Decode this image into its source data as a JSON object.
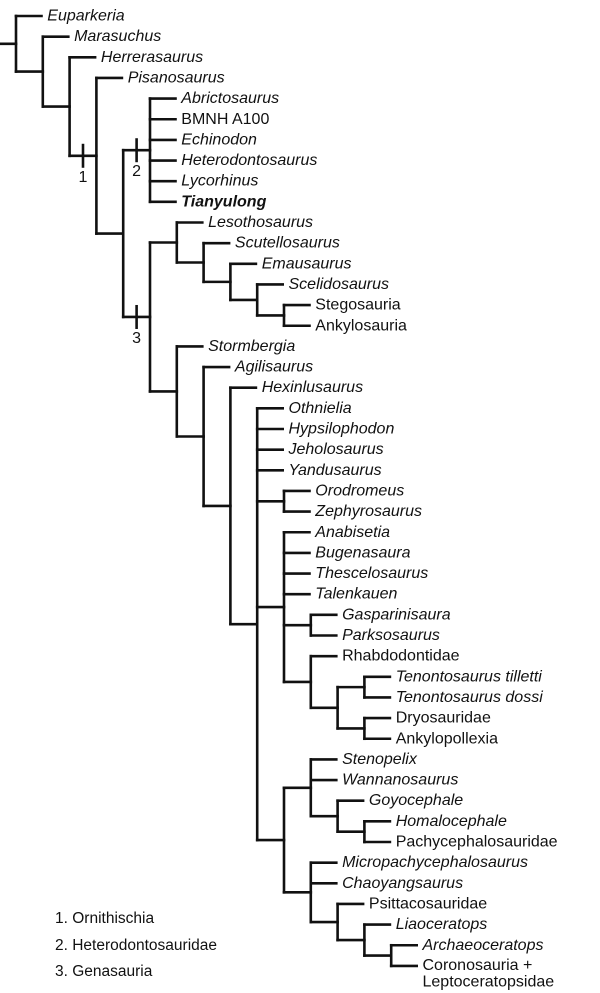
{
  "figure": {
    "description": "Phylogenetic cladogram of ornithischian dinosaurs and outgroups",
    "colors": {
      "line": "#111111",
      "text": "#111111",
      "background": "#ffffff"
    },
    "tick_labels": [
      "1",
      "2",
      "3"
    ],
    "legend": {
      "items": [
        "1. Ornithischia",
        "2. Heterodontosauridae",
        "3. Genasauria"
      ]
    },
    "tree": {
      "children": [
        {
          "label": "Euparkeria",
          "style": "italic"
        },
        {
          "children": [
            {
              "label": "Marasuchus",
              "style": "italic"
            },
            {
              "children": [
                {
                  "label": "Herrerasaurus",
                  "style": "italic"
                },
                {
                  "tick": "1",
                  "children": [
                    {
                      "label": "Pisanosaurus",
                      "style": "italic"
                    },
                    {
                      "children": [
                        {
                          "tick": "2",
                          "children": [
                            {
                              "label": "Abrictosaurus",
                              "style": "italic"
                            },
                            {
                              "label": "BMNH A100",
                              "style": "plain"
                            },
                            {
                              "label": "Echinodon",
                              "style": "italic"
                            },
                            {
                              "label": "Heterodontosaurus",
                              "style": "italic"
                            },
                            {
                              "label": "Lycorhinus",
                              "style": "italic"
                            },
                            {
                              "label": "Tianyulong",
                              "style": "bold-italic"
                            }
                          ]
                        },
                        {
                          "tick": "3",
                          "children": [
                            {
                              "children": [
                                {
                                  "label": "Lesothosaurus",
                                  "style": "italic"
                                },
                                {
                                  "children": [
                                    {
                                      "label": "Scutellosaurus",
                                      "style": "italic"
                                    },
                                    {
                                      "children": [
                                        {
                                          "label": "Emausaurus",
                                          "style": "italic"
                                        },
                                        {
                                          "children": [
                                            {
                                              "label": "Scelidosaurus",
                                              "style": "italic"
                                            },
                                            {
                                              "children": [
                                                {
                                                  "label": "Stegosauria",
                                                  "style": "plain"
                                                },
                                                {
                                                  "label": "Ankylosauria",
                                                  "style": "plain"
                                                }
                                              ]
                                            }
                                          ]
                                        }
                                      ]
                                    }
                                  ]
                                }
                              ]
                            },
                            {
                              "children": [
                                {
                                  "label": "Stormbergia",
                                  "style": "italic"
                                },
                                {
                                  "children": [
                                    {
                                      "label": "Agilisaurus",
                                      "style": "italic"
                                    },
                                    {
                                      "children": [
                                        {
                                          "label": "Hexinlusaurus",
                                          "style": "italic"
                                        },
                                        {
                                          "children": [
                                            {
                                              "label": "Othnielia",
                                              "style": "italic"
                                            },
                                            {
                                              "label": "Hypsilophodon",
                                              "style": "italic"
                                            },
                                            {
                                              "label": "Jeholosaurus",
                                              "style": "italic"
                                            },
                                            {
                                              "label": "Yandusaurus",
                                              "style": "italic"
                                            },
                                            {
                                              "children": [
                                                {
                                                  "label": "Orodromeus",
                                                  "style": "italic"
                                                },
                                                {
                                                  "label": "Zephyrosaurus",
                                                  "style": "italic"
                                                }
                                              ]
                                            },
                                            {
                                              "children": [
                                                {
                                                  "label": "Anabisetia",
                                                  "style": "italic"
                                                },
                                                {
                                                  "label": "Bugenasaura",
                                                  "style": "italic"
                                                },
                                                {
                                                  "label": "Thescelosaurus",
                                                  "style": "italic"
                                                },
                                                {
                                                  "label": "Talenkauen",
                                                  "style": "italic"
                                                },
                                                {
                                                  "children": [
                                                    {
                                                      "label": "Gasparinisaura",
                                                      "style": "italic"
                                                    },
                                                    {
                                                      "label": "Parksosaurus",
                                                      "style": "italic"
                                                    }
                                                  ]
                                                },
                                                {
                                                  "children": [
                                                    {
                                                      "label": "Rhabdodontidae",
                                                      "style": "plain"
                                                    },
                                                    {
                                                      "children": [
                                                        {
                                                          "children": [
                                                            {
                                                              "label": "Tenontosaurus tilletti",
                                                              "style": "italic"
                                                            },
                                                            {
                                                              "label": "Tenontosaurus dossi",
                                                              "style": "italic"
                                                            }
                                                          ]
                                                        },
                                                        {
                                                          "children": [
                                                            {
                                                              "label": "Dryosauridae",
                                                              "style": "plain"
                                                            },
                                                            {
                                                              "label": "Ankylopollexia",
                                                              "style": "plain"
                                                            }
                                                          ]
                                                        }
                                                      ]
                                                    }
                                                  ]
                                                }
                                              ]
                                            },
                                            {
                                              "children": [
                                                {
                                                  "children": [
                                                    {
                                                      "label": "Stenopelix",
                                                      "style": "italic"
                                                    },
                                                    {
                                                      "label": "Wannanosaurus",
                                                      "style": "italic"
                                                    },
                                                    {
                                                      "children": [
                                                        {
                                                          "label": "Goyocephale",
                                                          "style": "italic"
                                                        },
                                                        {
                                                          "children": [
                                                            {
                                                              "label": "Homalocephale",
                                                              "style": "italic"
                                                            },
                                                            {
                                                              "label": "Pachycephalosauridae",
                                                              "style": "plain"
                                                            }
                                                          ]
                                                        }
                                                      ]
                                                    }
                                                  ]
                                                },
                                                {
                                                  "children": [
                                                    {
                                                      "label": "Micropachycephalosaurus",
                                                      "style": "italic"
                                                    },
                                                    {
                                                      "label": "Chaoyangsaurus",
                                                      "style": "italic"
                                                    },
                                                    {
                                                      "children": [
                                                        {
                                                          "label": "Psittacosauridae",
                                                          "style": "plain"
                                                        },
                                                        {
                                                          "children": [
                                                            {
                                                              "label": "Liaoceratops",
                                                              "style": "italic"
                                                            },
                                                            {
                                                              "children": [
                                                                {
                                                                  "label": "Archaeoceratops",
                                                                  "style": "italic"
                                                                },
                                                                {
                                                                  "label": [
                                                                    "Coronosauria +",
                                                                    "Leptoceratopsidae"
                                                                  ],
                                                                  "style": "plain"
                                                                }
                                                              ]
                                                            }
                                                          ]
                                                        }
                                                      ]
                                                    }
                                                  ]
                                                }
                                              ]
                                            }
                                          ]
                                        }
                                      ]
                                    }
                                  ]
                                }
                              ]
                            }
                          ]
                        }
                      ]
                    }
                  ]
                }
              ]
            }
          ]
        }
      ]
    }
  }
}
